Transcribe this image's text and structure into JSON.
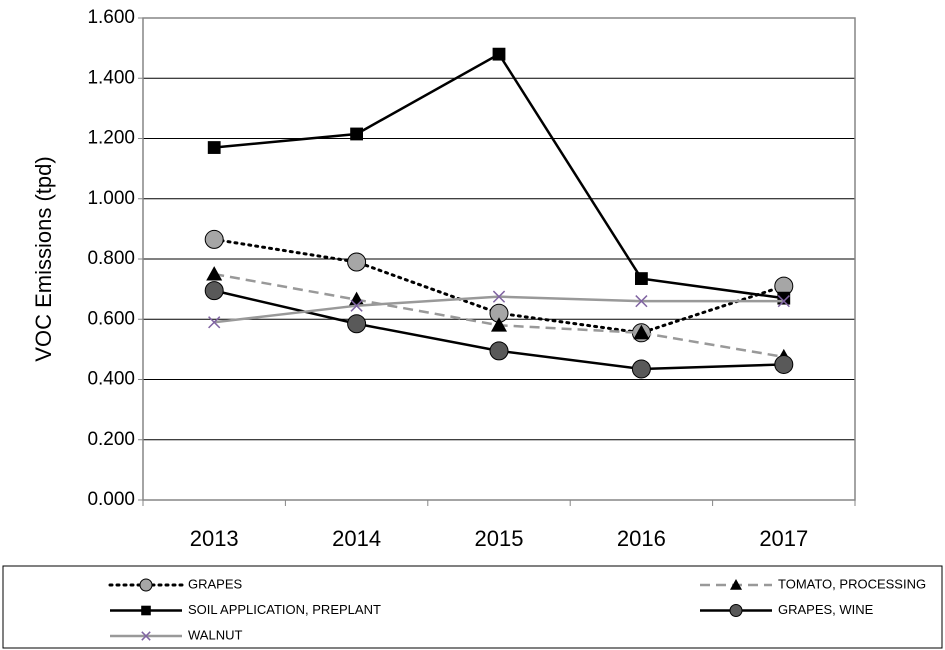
{
  "chart_data": {
    "type": "line",
    "y_label": "VOC Emissions (tpd)",
    "categories": [
      "2013",
      "2014",
      "2015",
      "2016",
      "2017"
    ],
    "ylim": [
      0,
      1.6
    ],
    "yticks": [
      {
        "value": 0,
        "label": "0.000"
      },
      {
        "value": 0.2,
        "label": "0.200"
      },
      {
        "value": 0.4,
        "label": "0.400"
      },
      {
        "value": 0.6,
        "label": "0.600"
      },
      {
        "value": 0.8,
        "label": "0.800"
      },
      {
        "value": 1.0,
        "label": "1.000"
      },
      {
        "value": 1.2,
        "label": "1.200"
      },
      {
        "value": 1.4,
        "label": "1.400"
      },
      {
        "value": 1.6,
        "label": "1.600"
      }
    ],
    "grid": true,
    "series": [
      {
        "name": "GRAPES",
        "color": "#000000",
        "dash": "dotted",
        "marker": "circle",
        "marker_color": "#a6a6a6",
        "values": [
          0.865,
          0.79,
          0.62,
          0.555,
          0.71
        ]
      },
      {
        "name": "TOMATO, PROCESSING",
        "color": "#999999",
        "dash": "dashed",
        "marker": "triangle",
        "marker_color": "#000000",
        "values": [
          0.75,
          0.665,
          0.58,
          0.555,
          0.475
        ]
      },
      {
        "name": "SOIL APPLICATION, PREPLANT",
        "color": "#000000",
        "dash": "solid",
        "marker": "square",
        "marker_color": "#000000",
        "values": [
          1.17,
          1.215,
          1.48,
          0.735,
          0.67
        ]
      },
      {
        "name": "GRAPES, WINE",
        "color": "#000000",
        "dash": "solid",
        "marker": "circle",
        "marker_color": "#595959",
        "values": [
          0.695,
          0.585,
          0.495,
          0.435,
          0.45
        ]
      },
      {
        "name": "WALNUT",
        "color": "#999999",
        "dash": "solid",
        "marker": "x",
        "marker_color": "#8064a2",
        "values": [
          0.59,
          0.645,
          0.675,
          0.66,
          0.66
        ]
      }
    ]
  }
}
